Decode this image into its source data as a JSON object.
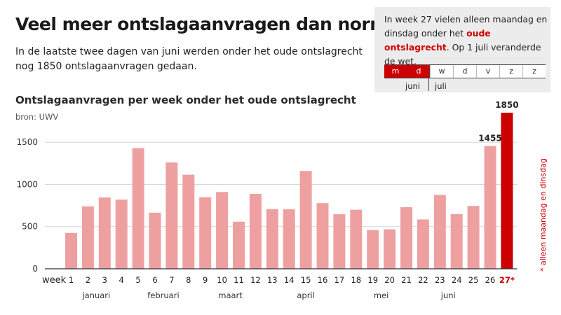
{
  "header": {
    "title": "Veel meer ontslagaanvragen dan normaal",
    "subtitle": "In de laatste twee dagen van juni werden onder het oude ontslagrecht nog 1850 ontslagaanvragen gedaan."
  },
  "infobox": {
    "text_before": "In week 27 vielen alleen maandag en dinsdag onder het ",
    "text_highlight": "oude ontslagrecht",
    "text_after": ". Op 1 juli veranderde de wet.",
    "days": [
      "m",
      "d",
      "w",
      "d",
      "v",
      "z",
      "z"
    ],
    "highlighted_days": [
      0,
      1
    ],
    "month_left": "juni",
    "month_right": "juli"
  },
  "colors": {
    "bar": "#eea0a0",
    "highlight": "#cc0000",
    "axis": "#333333",
    "grid": "#d6d6d6"
  },
  "footnote": "* alleen maandag en dinsdag",
  "chart_data": {
    "type": "bar",
    "title": "Ontslagaanvragen per week onder het oude ontslagrecht",
    "source": "bron: UWV",
    "xlabel": "week",
    "categories": [
      "1",
      "2",
      "3",
      "4",
      "5",
      "6",
      "7",
      "8",
      "9",
      "10",
      "11",
      "12",
      "13",
      "14",
      "15",
      "16",
      "17",
      "18",
      "19",
      "20",
      "21",
      "22",
      "23",
      "24",
      "25",
      "26",
      "27*"
    ],
    "values": [
      425,
      740,
      845,
      820,
      1430,
      665,
      1260,
      1115,
      848,
      910,
      558,
      888,
      708,
      705,
      1160,
      778,
      648,
      700,
      460,
      468,
      730,
      585,
      875,
      648,
      745,
      1455,
      1850
    ],
    "highlight_index": 26,
    "value_labels": {
      "25": "1455",
      "26": "1850"
    },
    "ylim": [
      0,
      1850
    ],
    "yticks": [
      0,
      500,
      1000,
      1500
    ],
    "grid": true,
    "months": [
      {
        "label": "januari",
        "center_week": 2.5
      },
      {
        "label": "februari",
        "center_week": 6.5
      },
      {
        "label": "maart",
        "center_week": 10.5
      },
      {
        "label": "april",
        "center_week": 15
      },
      {
        "label": "mei",
        "center_week": 19.5
      },
      {
        "label": "juni",
        "center_week": 23.5
      }
    ]
  }
}
